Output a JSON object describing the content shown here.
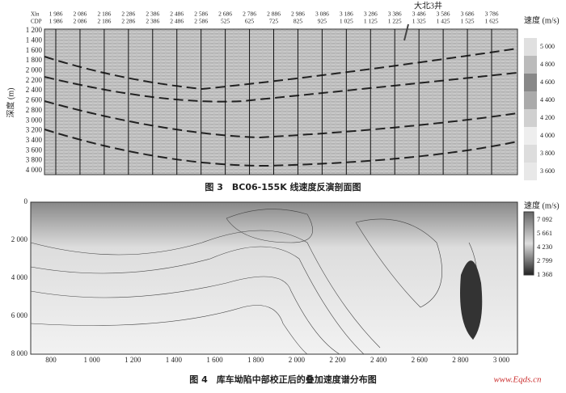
{
  "figure3": {
    "header_labels": [
      "Xln",
      "CDP"
    ],
    "xln_labels": [
      "1 986",
      "2 086",
      "2 186",
      "2 286",
      "2 386",
      "2 486",
      "2 586",
      "2 686",
      "2 786",
      "2 886",
      "2 986",
      "3 086",
      "3 186",
      "3 286",
      "3 386",
      "3 486",
      "3 586",
      "3 686",
      "3 786"
    ],
    "cdp_labels": [
      "1 986",
      "2 086",
      "2 186",
      "2 286",
      "2 386",
      "2 486",
      "2 586",
      "525",
      "625",
      "725",
      "825",
      "925",
      "1 025",
      "1 125",
      "1 225",
      "1 325",
      "1 425",
      "1 525",
      "1 625"
    ],
    "y_axis_title": "深度 (m)",
    "y_labels": [
      "1 200",
      "1 400",
      "1 600",
      "1 800",
      "2 000",
      "2 200",
      "2 400",
      "2 600",
      "2 800",
      "3 000",
      "3 200",
      "3 400",
      "3 600",
      "3 800",
      "4 000"
    ],
    "well_label": "大北3井",
    "legend_title": "速度 (m/s)",
    "legend_labels": [
      "5 000",
      "4 800",
      "4 600",
      "4 400",
      "4 200",
      "4 000",
      "3 800",
      "3 600"
    ],
    "caption": "图 3　BC06-155K 线速度反演剖面图"
  },
  "figure4": {
    "y_labels": [
      "0",
      "2 000",
      "4 000",
      "6 000",
      "8 000"
    ],
    "x_labels": [
      "800",
      "1 000",
      "1 200",
      "1 400",
      "1 600",
      "1 800",
      "2 000",
      "2 200",
      "2 400",
      "2 600",
      "2 800",
      "3 000"
    ],
    "legend_title": "速度 (m/s)",
    "legend_labels": [
      "7 092",
      "5 661",
      "4 230",
      "2 799",
      "1 368"
    ],
    "caption": "图 4　库车坳陷中部校正后的叠加速度谱分布图",
    "watermark": "www.Eqds.cn"
  }
}
